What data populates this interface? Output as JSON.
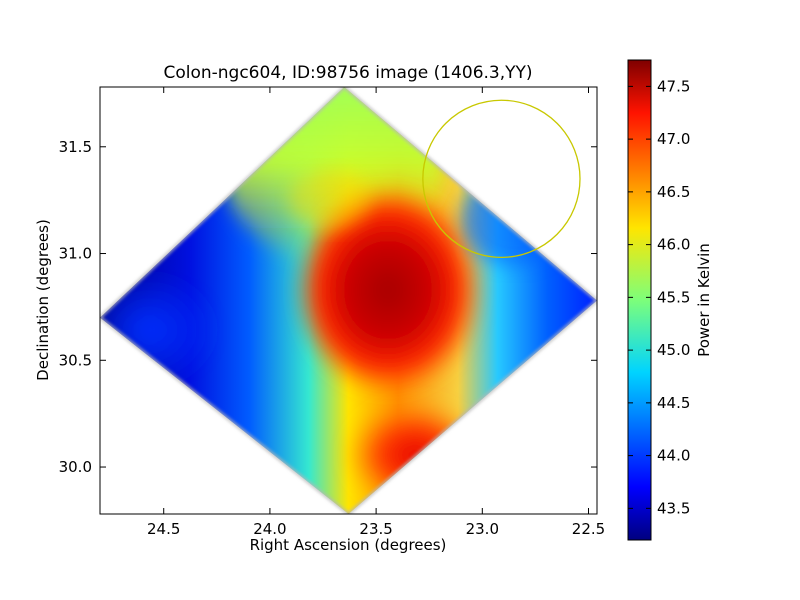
{
  "chart_data": {
    "type": "heatmap",
    "title": "Colon-ngc604, ID:98756 image (1406.3,YY)",
    "xlabel": "Right Ascension (degrees)",
    "ylabel": "Declination (degrees)",
    "xlim": [
      24.8,
      22.46
    ],
    "ylim": [
      29.78,
      31.78
    ],
    "xticks": [
      "24.5",
      "24.0",
      "23.5",
      "23.0",
      "22.5"
    ],
    "yticks": [
      "30.0",
      "30.5",
      "31.0",
      "31.5"
    ],
    "colorbar": {
      "label": "Power in Kelvin",
      "range": [
        43.2,
        47.75
      ],
      "ticks": [
        "43.5",
        "44.0",
        "44.5",
        "45.0",
        "45.5",
        "46.0",
        "46.5",
        "47.0",
        "47.5"
      ],
      "colormap": "jet"
    },
    "grid": false,
    "annotations": [
      {
        "shape": "circle",
        "center_ra": 22.91,
        "center_dec": 31.35,
        "radius_deg": 0.37,
        "color": "#c8c800"
      }
    ],
    "map_footprint": {
      "shape": "diamond",
      "vertices": [
        {
          "ra": 23.65,
          "dec": 31.78
        },
        {
          "ra": 22.46,
          "dec": 30.78
        },
        {
          "ra": 23.63,
          "dec": 29.78
        },
        {
          "ra": 24.8,
          "dec": 30.7
        }
      ]
    },
    "features": [
      {
        "name": "hot core",
        "ra": 23.4,
        "dec": 30.75,
        "value": 47.6
      },
      {
        "name": "hot southern lobe",
        "ra": 23.5,
        "dec": 30.15,
        "value": 47.2
      },
      {
        "name": "warm northern region",
        "ra": 23.7,
        "dec": 31.5,
        "value": 45.8
      },
      {
        "name": "cold eastern region",
        "ra": 24.55,
        "dec": 30.7,
        "value": 43.2
      },
      {
        "name": "cool western edge",
        "ra": 22.65,
        "dec": 30.75,
        "value": 43.9
      }
    ]
  }
}
